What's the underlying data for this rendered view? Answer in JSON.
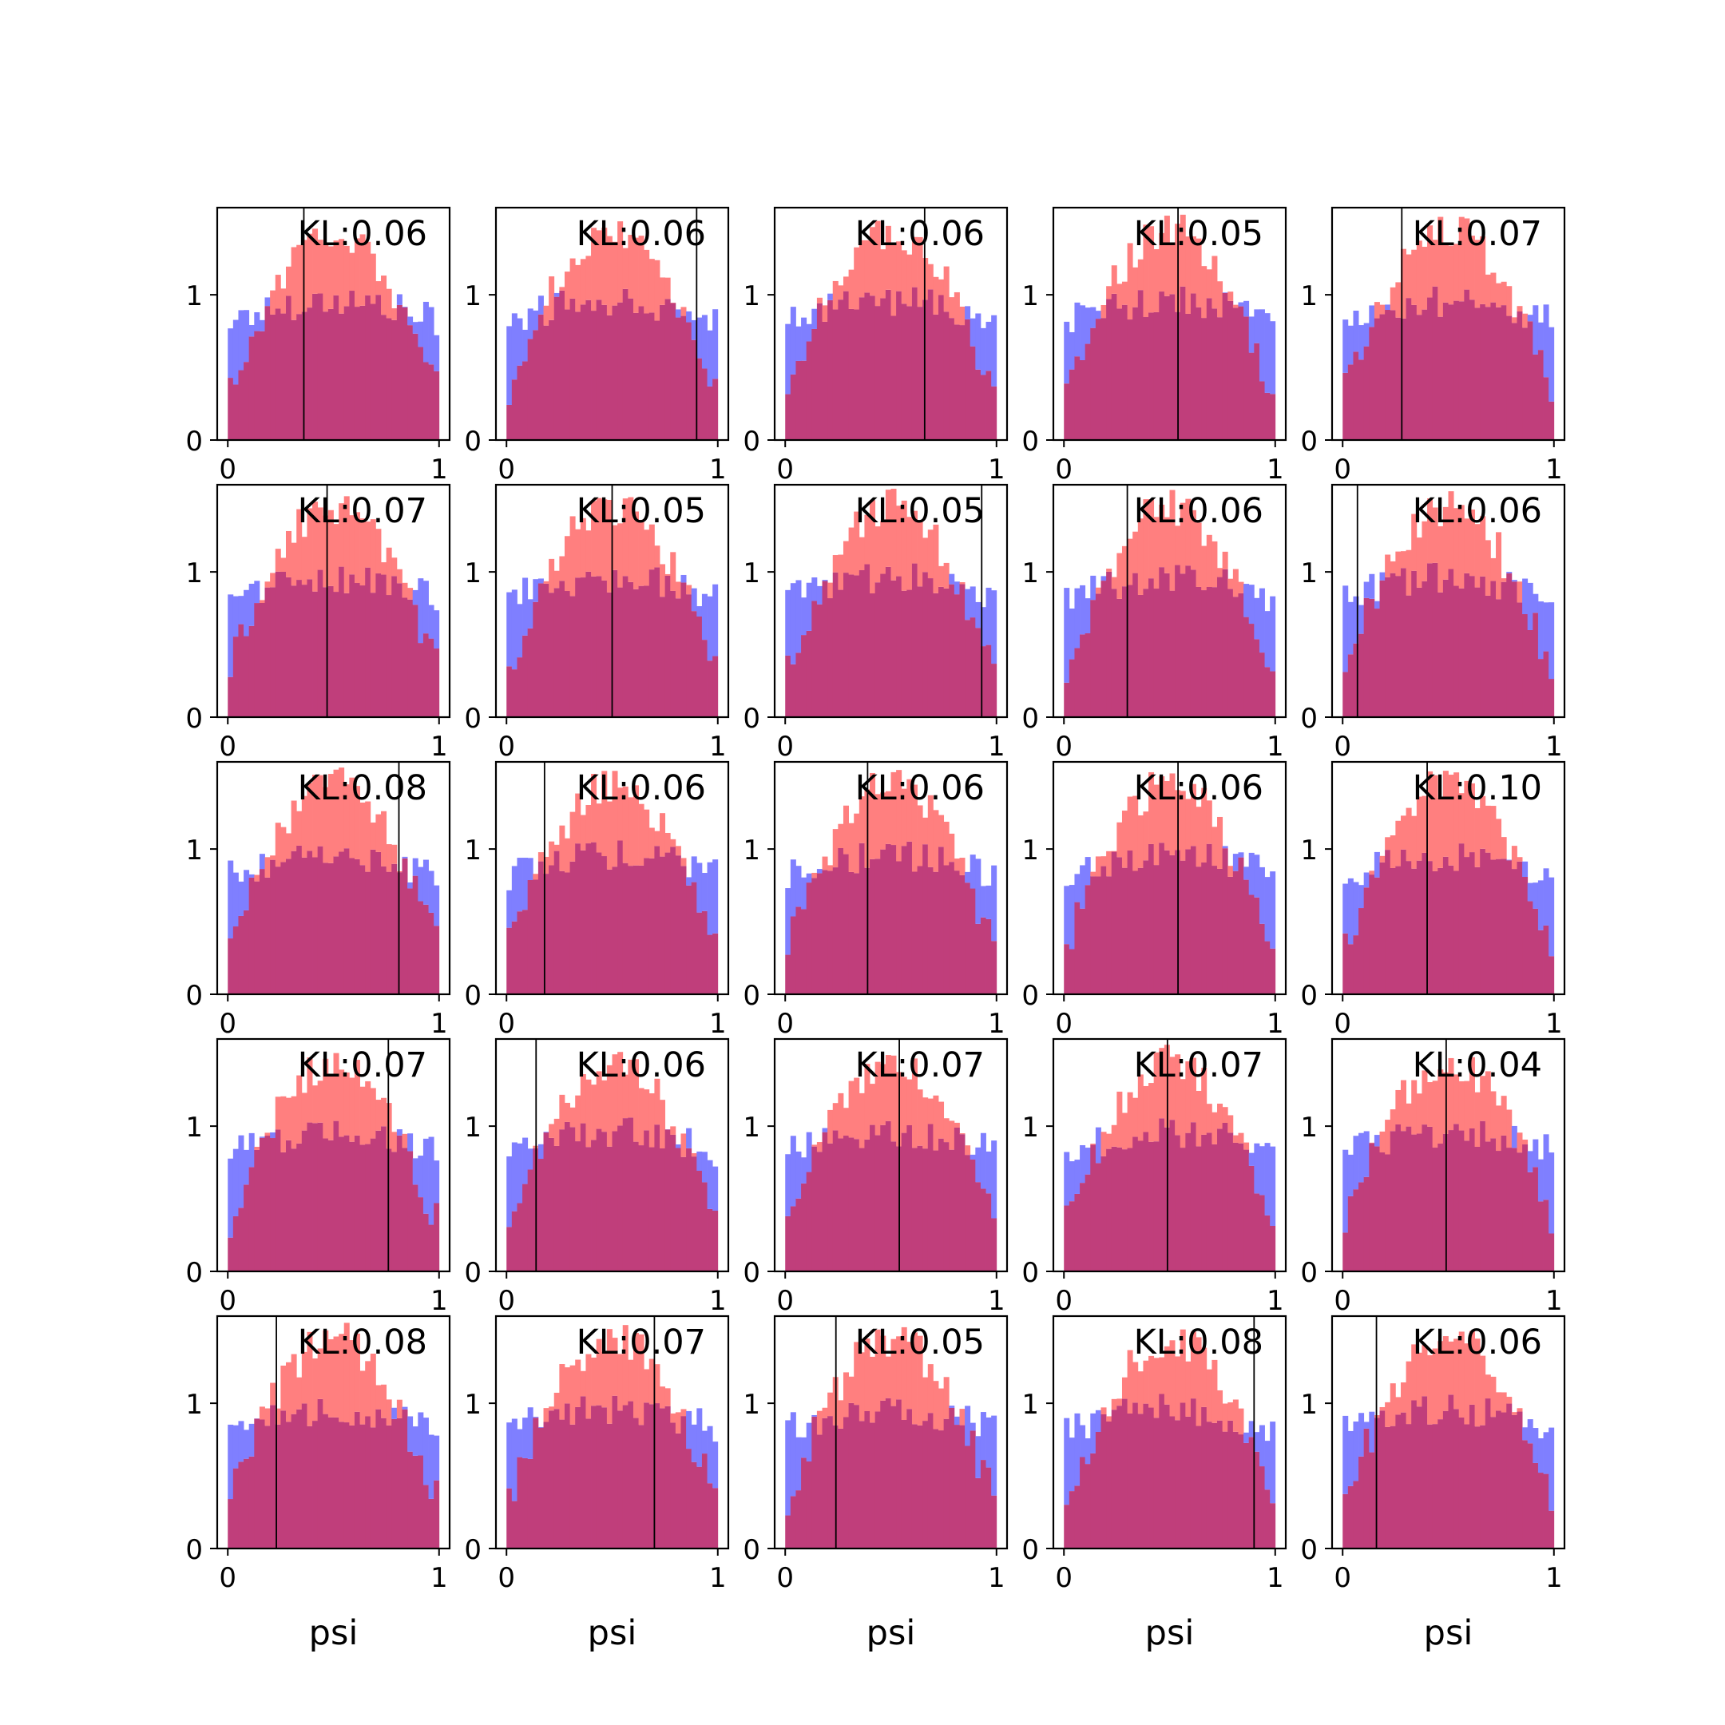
{
  "chart_data": {
    "type": "histogram-grid",
    "rows": 5,
    "cols": 5,
    "bins": 40,
    "xlim": [
      -0.05,
      1.05
    ],
    "ylim": [
      0,
      1.6
    ],
    "x_ticks": [
      "0",
      "1"
    ],
    "y_ticks": [
      "0",
      "1"
    ],
    "xlabel": "psi",
    "colors": {
      "blue": "#0000ff",
      "red": "#ff0000",
      "overlap": "#c03e7b",
      "vline": "#000000"
    },
    "panels": [
      {
        "kl_label": "KL:0.06",
        "vline_x": 0.36
      },
      {
        "kl_label": "KL:0.06",
        "vline_x": 0.9
      },
      {
        "kl_label": "KL:0.06",
        "vline_x": 0.66
      },
      {
        "kl_label": "KL:0.05",
        "vline_x": 0.54
      },
      {
        "kl_label": "KL:0.07",
        "vline_x": 0.28
      },
      {
        "kl_label": "KL:0.07",
        "vline_x": 0.47
      },
      {
        "kl_label": "KL:0.05",
        "vline_x": 0.5
      },
      {
        "kl_label": "KL:0.05",
        "vline_x": 0.93
      },
      {
        "kl_label": "KL:0.06",
        "vline_x": 0.3
      },
      {
        "kl_label": "KL:0.06",
        "vline_x": 0.07
      },
      {
        "kl_label": "KL:0.08",
        "vline_x": 0.81
      },
      {
        "kl_label": "KL:0.06",
        "vline_x": 0.18
      },
      {
        "kl_label": "KL:0.06",
        "vline_x": 0.39
      },
      {
        "kl_label": "KL:0.06",
        "vline_x": 0.54
      },
      {
        "kl_label": "KL:0.10",
        "vline_x": 0.4
      },
      {
        "kl_label": "KL:0.07",
        "vline_x": 0.76
      },
      {
        "kl_label": "KL:0.06",
        "vline_x": 0.14
      },
      {
        "kl_label": "KL:0.07",
        "vline_x": 0.54
      },
      {
        "kl_label": "KL:0.07",
        "vline_x": 0.49
      },
      {
        "kl_label": "KL:0.04",
        "vline_x": 0.49
      },
      {
        "kl_label": "KL:0.08",
        "vline_x": 0.23
      },
      {
        "kl_label": "KL:0.07",
        "vline_x": 0.7
      },
      {
        "kl_label": "KL:0.05",
        "vline_x": 0.24
      },
      {
        "kl_label": "KL:0.08",
        "vline_x": 0.9
      },
      {
        "kl_label": "KL:0.06",
        "vline_x": 0.16
      }
    ]
  }
}
